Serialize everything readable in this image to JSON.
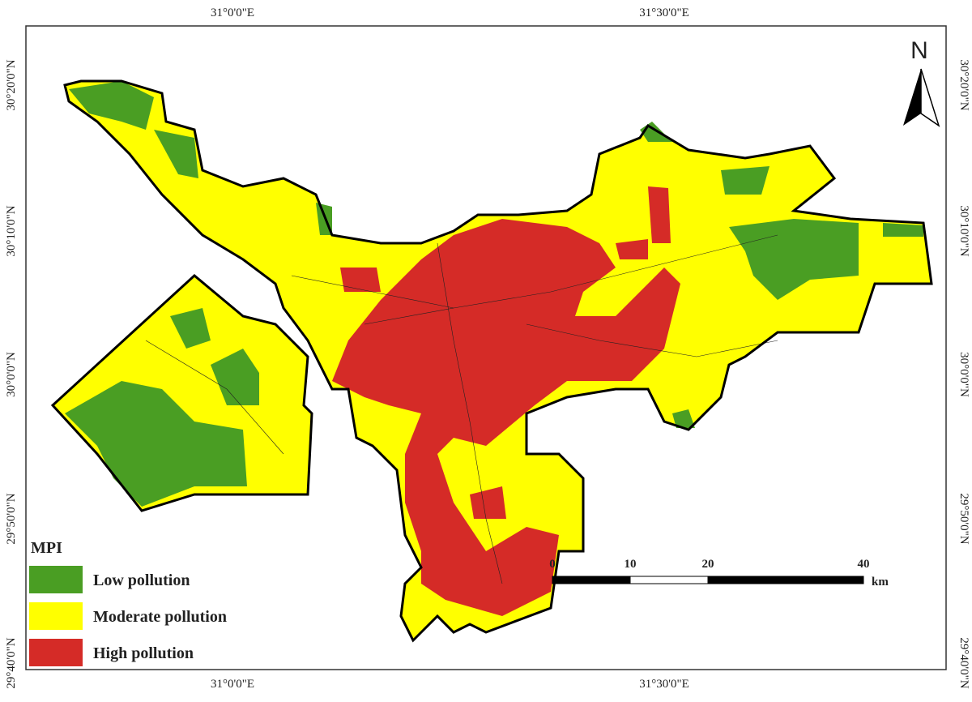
{
  "map": {
    "longitude_labels": [
      "31°0'0\"E",
      "31°30'0\"E"
    ],
    "latitude_labels": [
      "30°20'0\"N",
      "30°10'0\"N",
      "30°0'0\"N",
      "29°50'0\"N",
      "29°40'0\"N"
    ],
    "north_arrow": "N",
    "legend": {
      "title": "MPI",
      "items": [
        "Low pollution",
        "Moderate pollution",
        "High pollution"
      ]
    },
    "scale_bar": {
      "ticks": [
        0,
        10,
        20,
        40
      ],
      "unit": "km"
    }
  }
}
